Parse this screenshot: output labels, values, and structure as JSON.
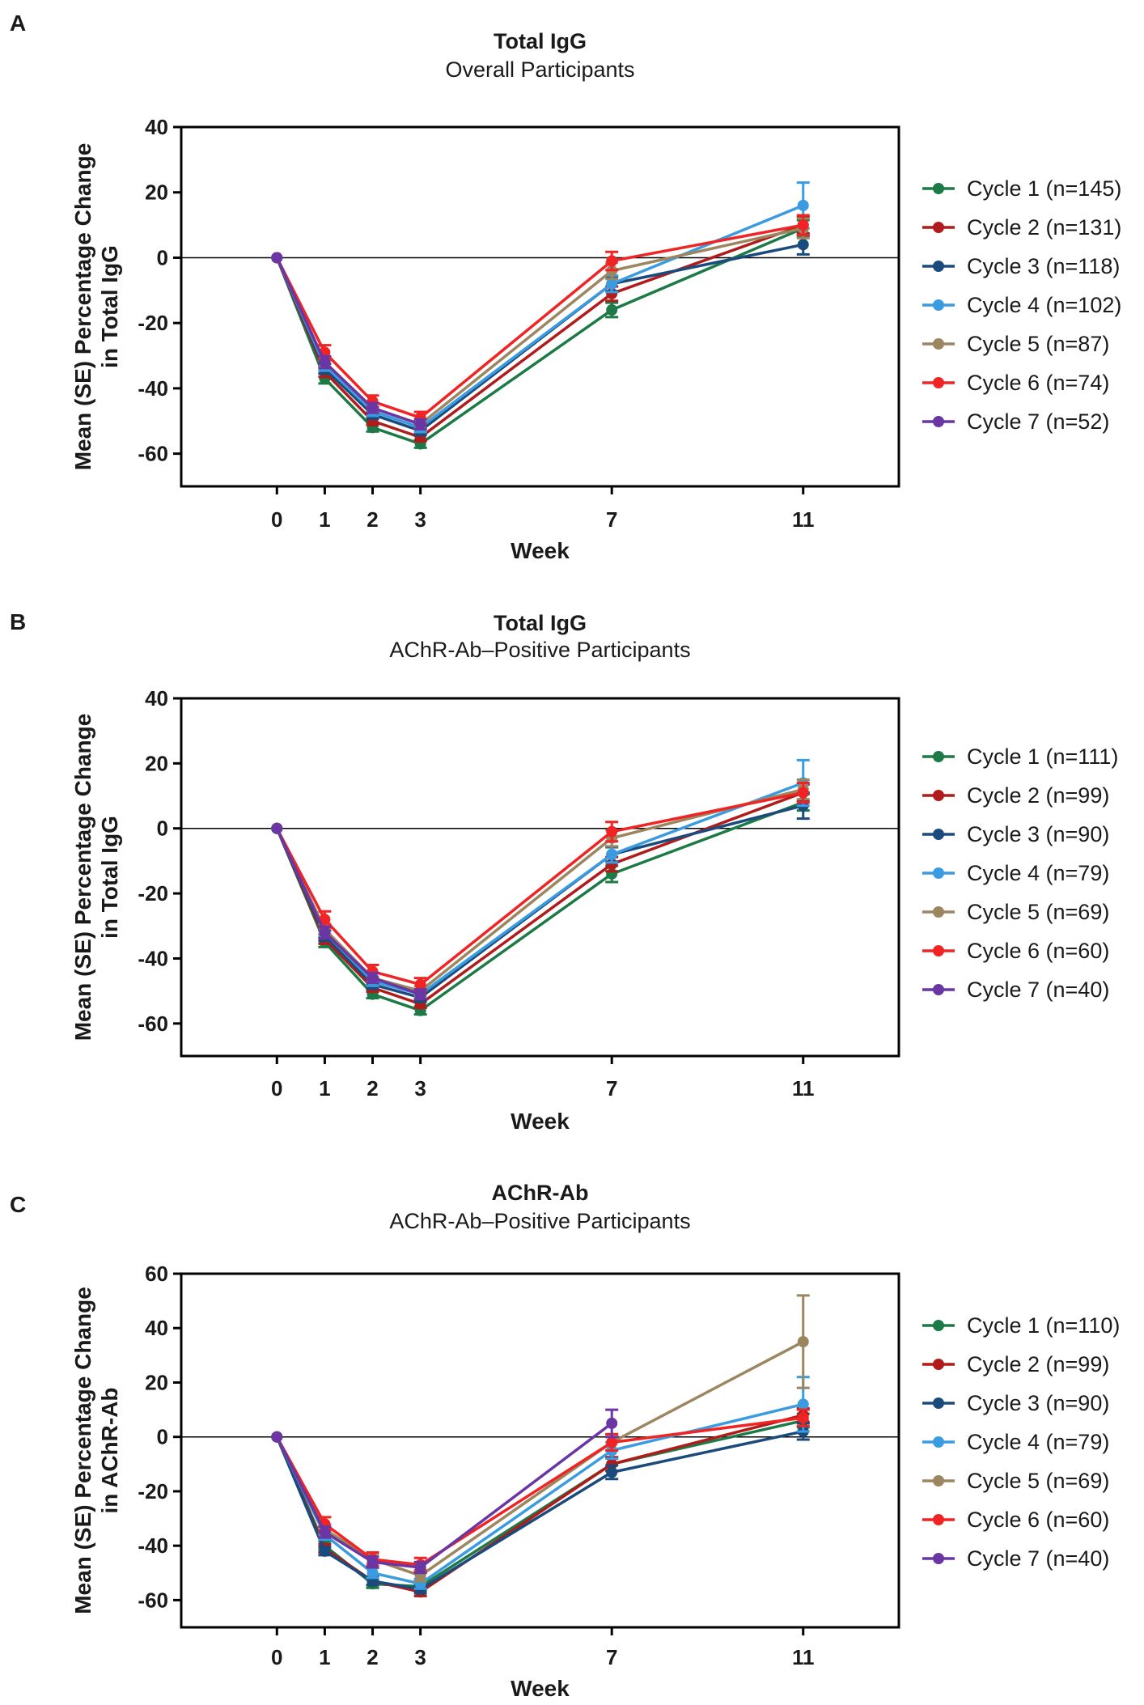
{
  "figure": {
    "background": "#ffffff",
    "axis_color": "#000000"
  },
  "chart_data": [
    {
      "type": "line",
      "panel": "A",
      "title": "Total IgG",
      "subtitle": "Overall Participants",
      "xlabel": "Week",
      "ylabel": [
        "Mean (SE) Percentage Change",
        "in Total IgG"
      ],
      "x_ticks": [
        0,
        1,
        2,
        3,
        7,
        11
      ],
      "xlim": [
        -2,
        13
      ],
      "ylim": [
        -70,
        40
      ],
      "y_ticks": [
        40,
        20,
        0,
        -20,
        -40,
        -60
      ],
      "y_tick_labels": [
        "40",
        "20",
        "0",
        "-20",
        "-40",
        "-60"
      ],
      "zero_line": true,
      "legend_position": "right",
      "series": [
        {
          "name": "Cycle 1 (n=145)",
          "color": "#1b7a45",
          "x": [
            0,
            1,
            2,
            3,
            7,
            11
          ],
          "values": [
            0,
            -37,
            -52,
            -57,
            -16,
            9
          ],
          "errors": [
            0,
            1.5,
            1.2,
            1.2,
            2.2,
            2.5
          ]
        },
        {
          "name": "Cycle 2 (n=131)",
          "color": "#b11b1b",
          "x": [
            0,
            1,
            2,
            3,
            7,
            11
          ],
          "values": [
            0,
            -35,
            -50,
            -55,
            -11,
            10
          ],
          "errors": [
            0,
            1.5,
            1.2,
            1.2,
            2.2,
            2.5
          ]
        },
        {
          "name": "Cycle 3 (n=118)",
          "color": "#1a4b7c",
          "x": [
            0,
            1,
            2,
            3,
            7,
            11
          ],
          "values": [
            0,
            -34,
            -48,
            -53,
            -8,
            4
          ],
          "errors": [
            0,
            1.5,
            1.3,
            1.3,
            2.2,
            3.0
          ]
        },
        {
          "name": "Cycle 4 (n=102)",
          "color": "#3b9be0",
          "x": [
            0,
            1,
            2,
            3,
            7,
            11
          ],
          "values": [
            0,
            -33,
            -47,
            -52,
            -8,
            16
          ],
          "errors": [
            0,
            1.6,
            1.4,
            1.4,
            2.5,
            7.0
          ]
        },
        {
          "name": "Cycle 5 (n=87)",
          "color": "#9b8660",
          "x": [
            0,
            1,
            2,
            3,
            7,
            11
          ],
          "values": [
            0,
            -32,
            -46,
            -51,
            -4,
            9
          ],
          "errors": [
            0,
            1.6,
            1.4,
            1.4,
            2.5,
            3.0
          ]
        },
        {
          "name": "Cycle 6 (n=74)",
          "color": "#f02424",
          "x": [
            0,
            1,
            2,
            3,
            7,
            11
          ],
          "values": [
            0,
            -29,
            -44,
            -49,
            -1,
            10
          ],
          "errors": [
            0,
            2.2,
            1.8,
            1.8,
            2.8,
            3.0
          ]
        },
        {
          "name": "Cycle 7 (n=52)",
          "color": "#6a36a4",
          "x": [
            0,
            1,
            2,
            3
          ],
          "values": [
            0,
            -32,
            -46,
            -51
          ],
          "errors": [
            0,
            1.8,
            1.5,
            1.5
          ]
        }
      ]
    },
    {
      "type": "line",
      "panel": "B",
      "title": "Total IgG",
      "subtitle": "AChR-Ab–Positive Participants",
      "xlabel": "Week",
      "ylabel": [
        "Mean (SE) Percentage Change",
        "in Total IgG"
      ],
      "x_ticks": [
        0,
        1,
        2,
        3,
        7,
        11
      ],
      "xlim": [
        -2,
        13
      ],
      "ylim": [
        -70,
        40
      ],
      "y_ticks": [
        40,
        20,
        0,
        -20,
        -40,
        -60
      ],
      "y_tick_labels": [
        "40",
        "20",
        "0",
        "-20",
        "-40",
        "-60"
      ],
      "zero_line": true,
      "legend_position": "right",
      "series": [
        {
          "name": "Cycle 1 (n=111)",
          "color": "#1b7a45",
          "x": [
            0,
            1,
            2,
            3,
            7,
            11
          ],
          "values": [
            0,
            -35,
            -51,
            -56,
            -14,
            8
          ],
          "errors": [
            0,
            1.5,
            1.2,
            1.2,
            2.5,
            2.5
          ]
        },
        {
          "name": "Cycle 2 (n=99)",
          "color": "#b11b1b",
          "x": [
            0,
            1,
            2,
            3,
            7,
            11
          ],
          "values": [
            0,
            -34,
            -49,
            -54,
            -11,
            11
          ],
          "errors": [
            0,
            1.5,
            1.2,
            1.2,
            2.2,
            2.5
          ]
        },
        {
          "name": "Cycle 3 (n=90)",
          "color": "#1a4b7c",
          "x": [
            0,
            1,
            2,
            3,
            7,
            11
          ],
          "values": [
            0,
            -33,
            -48,
            -52,
            -8,
            7
          ],
          "errors": [
            0,
            1.6,
            1.3,
            1.3,
            2.2,
            4.0
          ]
        },
        {
          "name": "Cycle 4 (n=79)",
          "color": "#3b9be0",
          "x": [
            0,
            1,
            2,
            3,
            7,
            11
          ],
          "values": [
            0,
            -32,
            -47,
            -51,
            -8,
            14
          ],
          "errors": [
            0,
            1.6,
            1.4,
            1.4,
            2.5,
            7.0
          ]
        },
        {
          "name": "Cycle 5 (n=69)",
          "color": "#9b8660",
          "x": [
            0,
            1,
            2,
            3,
            7,
            11
          ],
          "values": [
            0,
            -31,
            -46,
            -50,
            -3,
            12
          ],
          "errors": [
            0,
            1.6,
            1.4,
            1.4,
            2.5,
            3.0
          ]
        },
        {
          "name": "Cycle 6 (n=60)",
          "color": "#f02424",
          "x": [
            0,
            1,
            2,
            3,
            7,
            11
          ],
          "values": [
            0,
            -28,
            -44,
            -48,
            -1,
            11
          ],
          "errors": [
            0,
            2.5,
            2.0,
            2.0,
            3.0,
            3.0
          ]
        },
        {
          "name": "Cycle 7 (n=40)",
          "color": "#6a36a4",
          "x": [
            0,
            1,
            2,
            3
          ],
          "values": [
            0,
            -32,
            -46,
            -51
          ],
          "errors": [
            0,
            1.8,
            1.5,
            1.5
          ]
        }
      ]
    },
    {
      "type": "line",
      "panel": "C",
      "title": "AChR-Ab",
      "subtitle": "AChR-Ab–Positive Participants",
      "xlabel": "Week",
      "ylabel": [
        "Mean (SE) Percentage Change",
        "in AChR-Ab"
      ],
      "x_ticks": [
        0,
        1,
        2,
        3,
        7,
        11
      ],
      "xlim": [
        -2,
        13
      ],
      "ylim": [
        -70,
        60
      ],
      "y_ticks": [
        60,
        40,
        20,
        0,
        -20,
        -40,
        -60
      ],
      "y_tick_labels": [
        "60",
        "40",
        "20",
        "0",
        "-20",
        "-40",
        "-60"
      ],
      "zero_line": true,
      "legend_position": "right",
      "series": [
        {
          "name": "Cycle 1 (n=110)",
          "color": "#1b7a45",
          "x": [
            0,
            1,
            2,
            3,
            7,
            11
          ],
          "values": [
            0,
            -40,
            -54,
            -55,
            -10,
            6
          ],
          "errors": [
            0,
            1.5,
            1.5,
            1.5,
            2.5,
            2.5
          ]
        },
        {
          "name": "Cycle 2 (n=99)",
          "color": "#b11b1b",
          "x": [
            0,
            1,
            2,
            3,
            7,
            11
          ],
          "values": [
            0,
            -41,
            -53,
            -57,
            -10,
            8
          ],
          "errors": [
            0,
            1.5,
            1.5,
            1.5,
            2.5,
            2.5
          ]
        },
        {
          "name": "Cycle 3 (n=90)",
          "color": "#1a4b7c",
          "x": [
            0,
            1,
            2,
            3,
            7,
            11
          ],
          "values": [
            0,
            -42,
            -53,
            -56,
            -13,
            2
          ],
          "errors": [
            0,
            1.5,
            1.5,
            1.5,
            2.5,
            3.0
          ]
        },
        {
          "name": "Cycle 4 (n=79)",
          "color": "#3b9be0",
          "x": [
            0,
            1,
            2,
            3,
            7,
            11
          ],
          "values": [
            0,
            -36,
            -50,
            -54,
            -5,
            12
          ],
          "errors": [
            0,
            1.8,
            1.8,
            1.8,
            3.0,
            10.0
          ]
        },
        {
          "name": "Cycle 5 (n=69)",
          "color": "#9b8660",
          "x": [
            0,
            1,
            2,
            3,
            7,
            11
          ],
          "values": [
            0,
            -34,
            -45,
            -51,
            -2,
            35
          ],
          "errors": [
            0,
            1.8,
            2.0,
            2.0,
            3.0,
            17.0
          ]
        },
        {
          "name": "Cycle 6 (n=60)",
          "color": "#f02424",
          "x": [
            0,
            1,
            2,
            3,
            7,
            11
          ],
          "values": [
            0,
            -32,
            -45,
            -47,
            -2,
            7
          ],
          "errors": [
            0,
            2.5,
            2.5,
            2.5,
            3.0,
            3.0
          ]
        },
        {
          "name": "Cycle 7 (n=40)",
          "color": "#6a36a4",
          "x": [
            0,
            1,
            2,
            3,
            7
          ],
          "values": [
            0,
            -35,
            -46,
            -48,
            5
          ],
          "errors": [
            0,
            2.0,
            2.0,
            2.0,
            5.0
          ]
        }
      ]
    }
  ]
}
